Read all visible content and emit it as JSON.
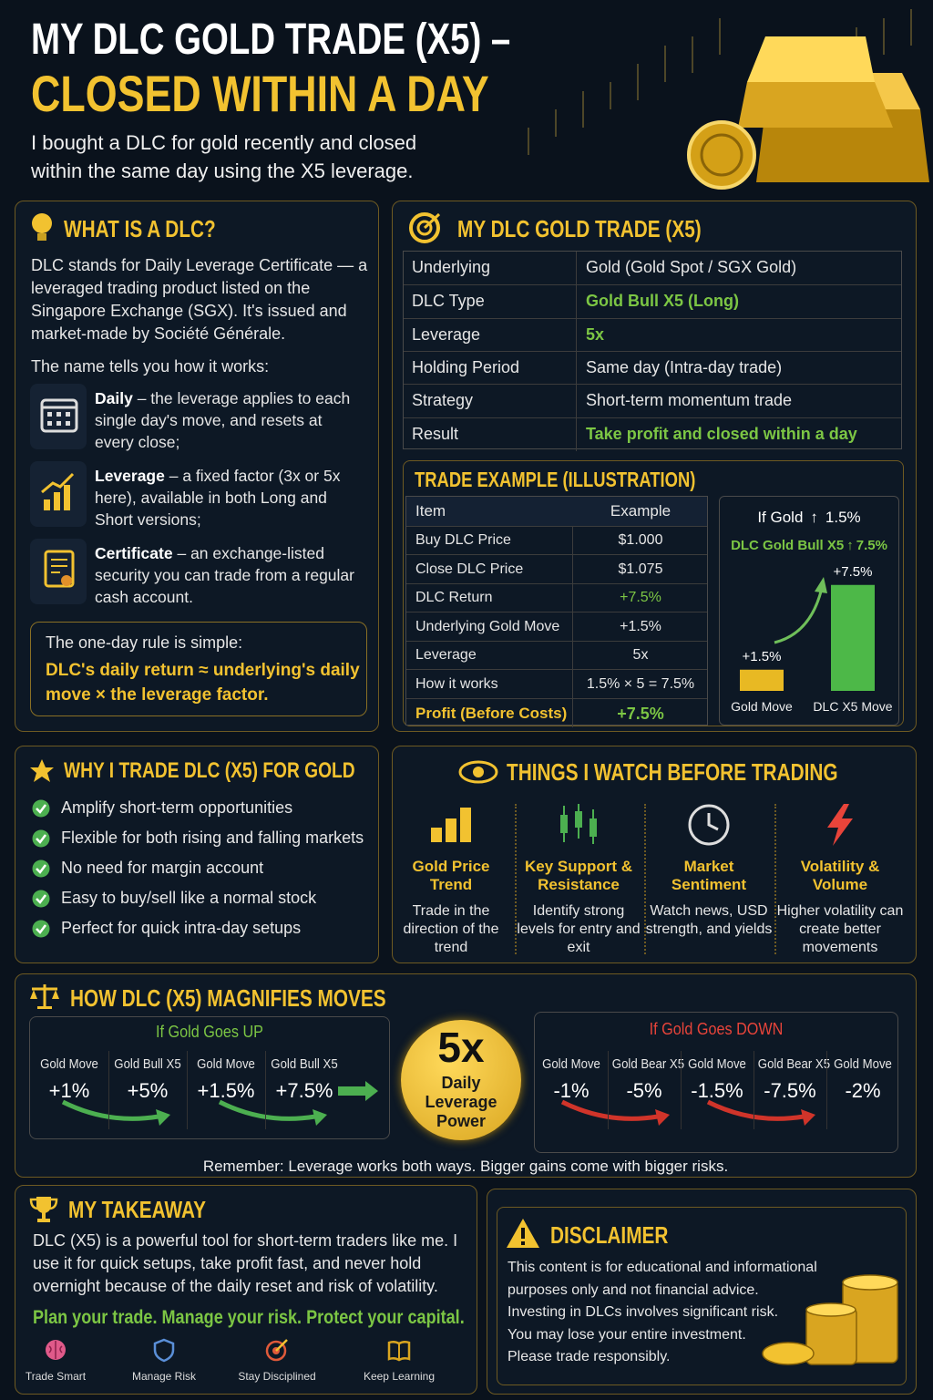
{
  "header": {
    "title_line1": "MY DLC GOLD TRADE (X5) –",
    "title_line2": "CLOSED WITHIN A DAY",
    "subtitle": "I bought a DLC for gold recently and closed within the same day using the X5 leverage."
  },
  "what_is_dlc": {
    "heading": "WHAT IS A DLC?",
    "intro": "DLC stands for Daily Leverage Certificate — a leveraged trading product listed on the Singapore Exchange (SGX). It's issued and market-made by Société Générale.",
    "name_lead": "The name tells you how it works:",
    "items": [
      {
        "term": "Daily",
        "text": "– the leverage applies to each single day's move, and resets at every close;"
      },
      {
        "term": "Leverage",
        "text": "– a fixed factor (3x or 5x here), available in both Long and Short versions;"
      },
      {
        "term": "Certificate",
        "text": "– an exchange-listed security you can trade from a regular cash account."
      }
    ],
    "rule_lead": "The one-day rule is simple:",
    "rule": "DLC's daily return ≈ underlying's daily move × the leverage factor."
  },
  "my_trade": {
    "heading": "MY DLC GOLD TRADE (X5)",
    "rows": [
      {
        "label": "Underlying",
        "value": "Gold (Gold Spot / SGX Gold)"
      },
      {
        "label": "DLC Type",
        "value": "Gold Bull X5 (Long)",
        "color": "#7cc644"
      },
      {
        "label": "Leverage",
        "value": "5x",
        "color": "#7cc644"
      },
      {
        "label": "Holding Period",
        "value": "Same day (Intra-day trade)"
      },
      {
        "label": "Strategy",
        "value": "Short-term momentum trade"
      },
      {
        "label": "Result",
        "value": "Take profit and closed within a day",
        "color": "#7cc644"
      }
    ]
  },
  "trade_example": {
    "heading": "TRADE EXAMPLE (ILLUSTRATION)",
    "columns": [
      "Item",
      "Example"
    ],
    "rows": [
      {
        "item": "Buy DLC Price",
        "example": "$1.000"
      },
      {
        "item": "Close DLC Price",
        "example": "$1.075"
      },
      {
        "item": "DLC Return",
        "example": "+7.5%",
        "color": "#7cc644"
      },
      {
        "item": "Underlying Gold Move",
        "example": "+1.5%"
      },
      {
        "item": "Leverage",
        "example": "5x"
      },
      {
        "item": "How it works",
        "example": "1.5% × 5 = 7.5%"
      },
      {
        "item": "Profit (Before Costs)",
        "example": "+7.5%",
        "color": "#7cc644"
      }
    ],
    "chart": {
      "type": "bar",
      "condition": "If Gold",
      "condition_value": "1.5%",
      "result": "DLC Gold Bull X5",
      "result_value": "7.5%",
      "categories": [
        "Gold Move",
        "DLC X5 Move"
      ],
      "values": [
        1.5,
        7.5
      ],
      "value_labels": [
        "+1.5%",
        "+7.5%"
      ],
      "colors": [
        "#e8b923",
        "#4db848"
      ]
    }
  },
  "why": {
    "heading": "WHY I TRADE DLC (X5) FOR GOLD",
    "items": [
      "Amplify short-term opportunities",
      "Flexible for both rising and falling markets",
      "No need for margin account",
      "Easy to buy/sell like a normal stock",
      "Perfect for quick intra-day setups"
    ]
  },
  "watch": {
    "heading": "THINGS I WATCH BEFORE TRADING",
    "items": [
      {
        "title": "Gold Price Trend",
        "text": "Trade in the direction of the trend"
      },
      {
        "title": "Key Support & Resistance",
        "text": "Identify strong levels for entry and exit"
      },
      {
        "title": "Market Sentiment",
        "text": "Watch news, USD strength, and yields"
      },
      {
        "title": "Volatility & Volume",
        "text": "Higher volatility can create better movements"
      }
    ]
  },
  "magnify": {
    "heading": "HOW DLC (X5) MAGNIFIES MOVES",
    "up": {
      "label": "If Gold Goes UP",
      "columns": [
        "Gold Move",
        "Gold Bull X5",
        "Gold Move",
        "Gold Bull X5"
      ],
      "values": [
        "+1%",
        "+5%",
        "+1.5%",
        "+7.5%"
      ]
    },
    "center": {
      "big": "5x",
      "text": "Daily Leverage Power"
    },
    "down": {
      "label": "If Gold Goes DOWN",
      "columns": [
        "Gold Move",
        "Gold Bear X5",
        "Gold Move",
        "Gold Bear X5",
        "Gold Move"
      ],
      "values": [
        "-1%",
        "-5%",
        "-1.5%",
        "-7.5%",
        "-2%"
      ]
    },
    "note": "Remember: Leverage works both ways. Bigger gains come with bigger risks."
  },
  "takeaway": {
    "heading": "MY TAKEAWAY",
    "text": "DLC (X5) is a powerful tool for short-term traders like me. I use it for quick setups, take profit fast, and never hold overnight because of the daily reset and risk of volatility.",
    "tagline": "Plan your trade. Manage your risk. Protect your capital.",
    "icons": [
      "Trade Smart",
      "Manage Risk",
      "Stay Disciplined",
      "Keep Learning"
    ]
  },
  "disclaimer": {
    "heading": "DISCLAIMER",
    "lines": [
      "This content is for educational and informational purposes only and not financial advice.",
      "Investing in DLCs involves significant risk.",
      "You may lose your entire investment.",
      "Please trade responsibly."
    ]
  }
}
